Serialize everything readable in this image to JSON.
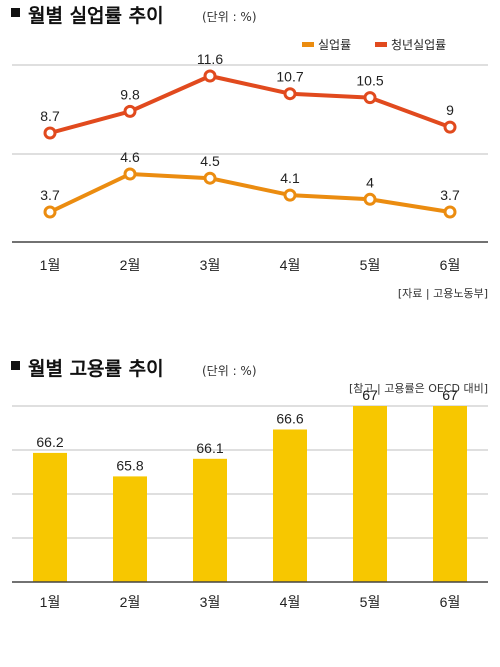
{
  "colors": {
    "unemployment": "#EB8C10",
    "youth": "#E14A1E",
    "bar": "#F7C700",
    "bullet": "#111111"
  },
  "chart_data": [
    {
      "type": "line",
      "title": "월별 실업률 추이",
      "unit": "(단위 : %)",
      "source": "[자료 | 고용노동부]",
      "categories": [
        "1월",
        "2월",
        "3월",
        "4월",
        "5월",
        "6월"
      ],
      "series": [
        {
          "name": "실업률",
          "color": "#EB8C10",
          "values": [
            3.7,
            4.6,
            4.5,
            4.1,
            4.0,
            3.7
          ],
          "labels": [
            "3.7",
            "4.6",
            "4.5",
            "4.1",
            "4",
            "3.7"
          ]
        },
        {
          "name": "청년실업률",
          "color": "#E14A1E",
          "values": [
            8.7,
            9.8,
            11.6,
            10.7,
            10.5,
            9.0
          ],
          "labels": [
            "8.7",
            "9.8",
            "11.6",
            "10.7",
            "10.5",
            "9"
          ]
        }
      ],
      "legend": "top-right",
      "grid": true
    },
    {
      "type": "bar",
      "title": "월별 고용률 추이",
      "unit": "(단위 : %)",
      "note": "[참고 | 고용률은 OECD 대비]",
      "categories": [
        "1월",
        "2월",
        "3월",
        "4월",
        "5월",
        "6월"
      ],
      "values": [
        66.2,
        65.8,
        66.1,
        66.6,
        67.0,
        67.0
      ],
      "labels": [
        "66.2",
        "65.8",
        "66.1",
        "66.6",
        "67",
        "67"
      ],
      "grid": true
    }
  ]
}
